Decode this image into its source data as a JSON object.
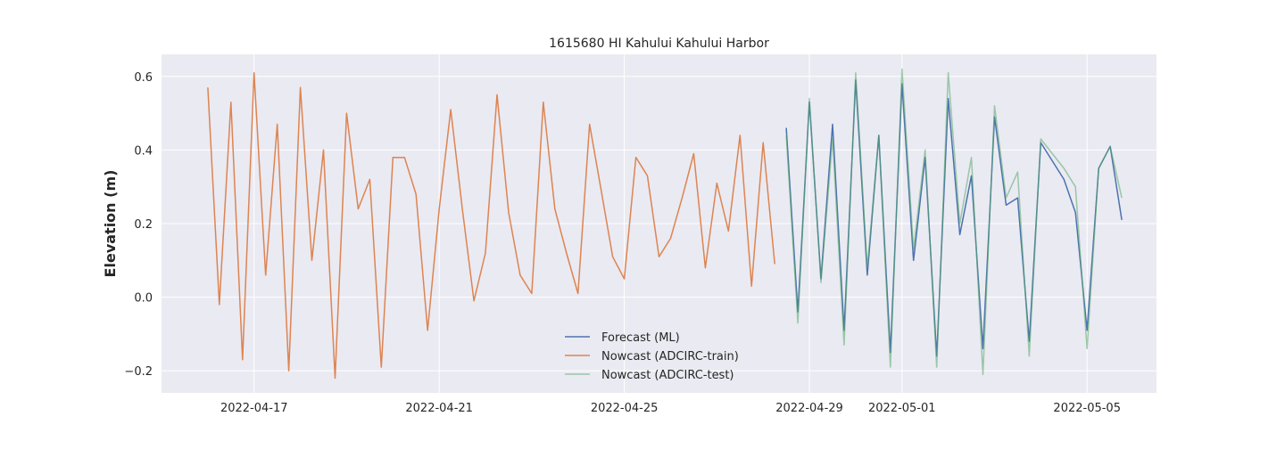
{
  "chart_data": {
    "type": "line",
    "title": "1615680 HI Kahului Kahului Harbor",
    "xlabel": "",
    "ylabel": "Elevation (m)",
    "xlim": [
      "2022-04-15T00:00",
      "2022-05-06T12:00"
    ],
    "ylim": [
      -0.26,
      0.66
    ],
    "x_ticks": [
      "2022-04-17",
      "2022-04-21",
      "2022-04-25",
      "2022-04-29",
      "2022-05-01",
      "2022-05-05"
    ],
    "y_ticks": [
      -0.2,
      0.0,
      0.2,
      0.4,
      0.6
    ],
    "y_tick_labels": [
      "−0.2",
      "0.0",
      "0.2",
      "0.4",
      "0.6"
    ],
    "grid": true,
    "legend_position": "lower-center",
    "background": "#eaeaf2",
    "series": [
      {
        "name": "Forecast (ML)",
        "color": "#4c72b0",
        "points": [
          [
            "2022-04-28T12:00",
            0.46
          ],
          [
            "2022-04-28T18:00",
            -0.04
          ],
          [
            "2022-04-29T00:00",
            0.53
          ],
          [
            "2022-04-29T06:00",
            0.05
          ],
          [
            "2022-04-29T12:00",
            0.47
          ],
          [
            "2022-04-29T18:00",
            -0.09
          ],
          [
            "2022-04-30T00:00",
            0.59
          ],
          [
            "2022-04-30T06:00",
            0.06
          ],
          [
            "2022-04-30T12:00",
            0.44
          ],
          [
            "2022-04-30T18:00",
            -0.15
          ],
          [
            "2022-05-01T00:00",
            0.58
          ],
          [
            "2022-05-01T06:00",
            0.1
          ],
          [
            "2022-05-01T12:00",
            0.38
          ],
          [
            "2022-05-01T18:00",
            -0.16
          ],
          [
            "2022-05-02T00:00",
            0.54
          ],
          [
            "2022-05-02T06:00",
            0.17
          ],
          [
            "2022-05-02T12:00",
            0.33
          ],
          [
            "2022-05-02T18:00",
            -0.14
          ],
          [
            "2022-05-03T00:00",
            0.49
          ],
          [
            "2022-05-03T06:00",
            0.25
          ],
          [
            "2022-05-03T12:00",
            0.27
          ],
          [
            "2022-05-03T18:00",
            -0.12
          ],
          [
            "2022-05-04T00:00",
            0.42
          ],
          [
            "2022-05-04T12:00",
            0.32
          ],
          [
            "2022-05-04T18:00",
            0.23
          ],
          [
            "2022-05-05T00:00",
            -0.09
          ],
          [
            "2022-05-05T06:00",
            0.35
          ],
          [
            "2022-05-05T12:00",
            0.41
          ],
          [
            "2022-05-05T18:00",
            0.21
          ]
        ]
      },
      {
        "name": "Nowcast (ADCIRC-train)",
        "color": "#dd8452",
        "points": [
          [
            "2022-04-16T00:00",
            0.57
          ],
          [
            "2022-04-16T06:00",
            -0.02
          ],
          [
            "2022-04-16T12:00",
            0.53
          ],
          [
            "2022-04-16T18:00",
            -0.17
          ],
          [
            "2022-04-17T00:00",
            0.61
          ],
          [
            "2022-04-17T06:00",
            0.06
          ],
          [
            "2022-04-17T12:00",
            0.47
          ],
          [
            "2022-04-17T18:00",
            -0.2
          ],
          [
            "2022-04-18T00:00",
            0.57
          ],
          [
            "2022-04-18T06:00",
            0.1
          ],
          [
            "2022-04-18T12:00",
            0.4
          ],
          [
            "2022-04-18T18:00",
            -0.22
          ],
          [
            "2022-04-19T00:00",
            0.5
          ],
          [
            "2022-04-19T06:00",
            0.24
          ],
          [
            "2022-04-19T12:00",
            0.32
          ],
          [
            "2022-04-19T18:00",
            -0.19
          ],
          [
            "2022-04-20T00:00",
            0.38
          ],
          [
            "2022-04-20T06:00",
            0.38
          ],
          [
            "2022-04-20T12:00",
            0.28
          ],
          [
            "2022-04-20T18:00",
            -0.09
          ],
          [
            "2022-04-21T00:00",
            0.24
          ],
          [
            "2022-04-21T06:00",
            0.51
          ],
          [
            "2022-04-21T12:00",
            0.24
          ],
          [
            "2022-04-21T18:00",
            -0.01
          ],
          [
            "2022-04-22T00:00",
            0.12
          ],
          [
            "2022-04-22T06:00",
            0.55
          ],
          [
            "2022-04-22T12:00",
            0.23
          ],
          [
            "2022-04-22T18:00",
            0.06
          ],
          [
            "2022-04-23T00:00",
            0.01
          ],
          [
            "2022-04-23T06:00",
            0.53
          ],
          [
            "2022-04-23T12:00",
            0.24
          ],
          [
            "2022-04-23T18:00",
            0.12
          ],
          [
            "2022-04-24T00:00",
            0.01
          ],
          [
            "2022-04-24T06:00",
            0.47
          ],
          [
            "2022-04-24T12:00",
            0.29
          ],
          [
            "2022-04-24T18:00",
            0.11
          ],
          [
            "2022-04-25T00:00",
            0.05
          ],
          [
            "2022-04-25T06:00",
            0.38
          ],
          [
            "2022-04-25T12:00",
            0.33
          ],
          [
            "2022-04-25T18:00",
            0.11
          ],
          [
            "2022-04-26T00:00",
            0.16
          ],
          [
            "2022-04-26T06:00",
            0.27
          ],
          [
            "2022-04-26T12:00",
            0.39
          ],
          [
            "2022-04-26T18:00",
            0.08
          ],
          [
            "2022-04-27T00:00",
            0.31
          ],
          [
            "2022-04-27T06:00",
            0.18
          ],
          [
            "2022-04-27T12:00",
            0.44
          ],
          [
            "2022-04-27T18:00",
            0.03
          ],
          [
            "2022-04-28T00:00",
            0.42
          ],
          [
            "2022-04-28T06:00",
            0.09
          ]
        ]
      },
      {
        "name": "Nowcast (ADCIRC-test)",
        "color": "#55a868",
        "points": [
          [
            "2022-04-28T12:00",
            0.44
          ],
          [
            "2022-04-28T18:00",
            -0.07
          ],
          [
            "2022-04-29T00:00",
            0.54
          ],
          [
            "2022-04-29T06:00",
            0.04
          ],
          [
            "2022-04-29T12:00",
            0.43
          ],
          [
            "2022-04-29T18:00",
            -0.13
          ],
          [
            "2022-04-30T00:00",
            0.61
          ],
          [
            "2022-04-30T06:00",
            0.08
          ],
          [
            "2022-04-30T12:00",
            0.44
          ],
          [
            "2022-04-30T18:00",
            -0.19
          ],
          [
            "2022-05-01T00:00",
            0.62
          ],
          [
            "2022-05-01T06:00",
            0.13
          ],
          [
            "2022-05-01T12:00",
            0.4
          ],
          [
            "2022-05-01T18:00",
            -0.19
          ],
          [
            "2022-05-02T00:00",
            0.61
          ],
          [
            "2022-05-02T06:00",
            0.2
          ],
          [
            "2022-05-02T12:00",
            0.38
          ],
          [
            "2022-05-02T18:00",
            -0.21
          ],
          [
            "2022-05-03T00:00",
            0.52
          ],
          [
            "2022-05-03T06:00",
            0.27
          ],
          [
            "2022-05-03T12:00",
            0.34
          ],
          [
            "2022-05-03T18:00",
            -0.16
          ],
          [
            "2022-05-04T00:00",
            0.43
          ],
          [
            "2022-05-04T12:00",
            0.35
          ],
          [
            "2022-05-04T18:00",
            0.3
          ],
          [
            "2022-05-05T00:00",
            -0.14
          ],
          [
            "2022-05-05T06:00",
            0.35
          ],
          [
            "2022-05-05T12:00",
            0.41
          ],
          [
            "2022-05-05T18:00",
            0.27
          ]
        ]
      }
    ]
  }
}
